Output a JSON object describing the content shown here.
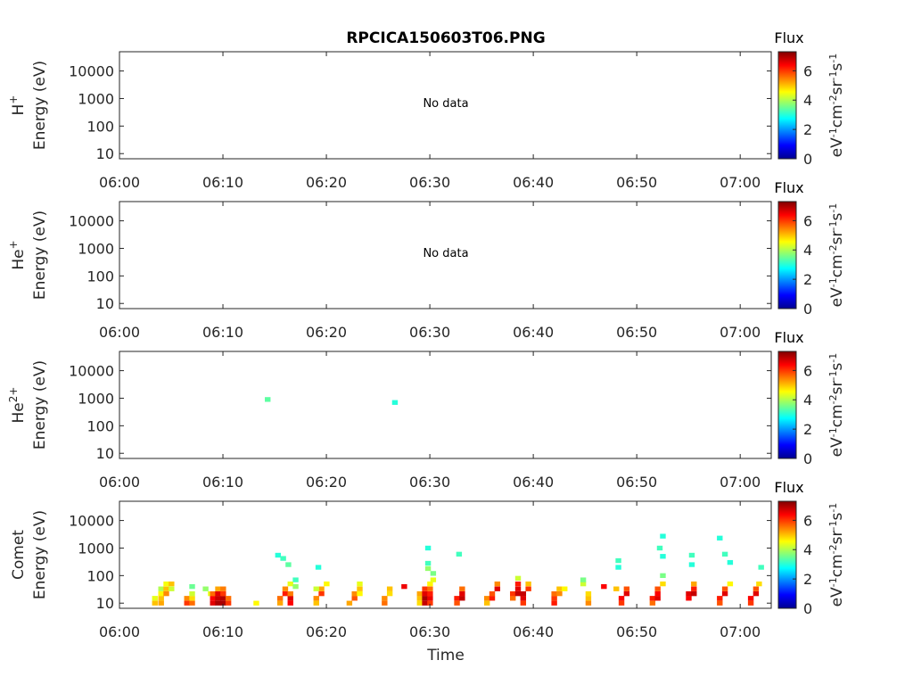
{
  "figure": {
    "title": "RPCICA150603T06.PNG",
    "xlabel": "Time"
  },
  "chart_data": [
    {
      "type": "heatmap",
      "ylabel_species": "H",
      "ylabel_sup": "+",
      "ylabel": "Energy (eV)",
      "x_ticks": [
        "06:00",
        "06:10",
        "06:20",
        "06:30",
        "06:40",
        "06:50",
        "07:00"
      ],
      "y_ticks": [
        "10",
        "100",
        "1000",
        "10000"
      ],
      "y_scale": "log",
      "annotation": "No data",
      "colorbar": {
        "label": "Flux",
        "units": "eV-1cm-2sr-1s-1",
        "ticks": [
          "0",
          "2",
          "4",
          "6"
        ],
        "range": [
          0,
          7.3
        ],
        "colormap": "jet"
      },
      "cells": []
    },
    {
      "type": "heatmap",
      "ylabel_species": "He",
      "ylabel_sup": "+",
      "ylabel": "Energy (eV)",
      "x_ticks": [
        "06:00",
        "06:10",
        "06:20",
        "06:30",
        "06:40",
        "06:50",
        "07:00"
      ],
      "y_ticks": [
        "10",
        "100",
        "1000",
        "10000"
      ],
      "y_scale": "log",
      "annotation": "No data",
      "colorbar": {
        "label": "Flux",
        "units": "eV-1cm-2sr-1s-1",
        "ticks": [
          "0",
          "2",
          "4",
          "6"
        ],
        "range": [
          0,
          7.3
        ],
        "colormap": "jet"
      },
      "cells": []
    },
    {
      "type": "heatmap",
      "ylabel_species": "He",
      "ylabel_sup": "2+",
      "ylabel": "Energy (eV)",
      "x_ticks": [
        "06:00",
        "06:10",
        "06:20",
        "06:30",
        "06:40",
        "06:50",
        "07:00"
      ],
      "y_ticks": [
        "10",
        "100",
        "1000",
        "10000"
      ],
      "y_scale": "log",
      "annotation": "",
      "colorbar": {
        "label": "Flux",
        "units": "eV-1cm-2sr-1s-1",
        "ticks": [
          "0",
          "2",
          "4",
          "6"
        ],
        "range": [
          0,
          7.3
        ],
        "colormap": "jet"
      },
      "cells": [
        {
          "t": 14.3,
          "e": 900,
          "v": 3.4
        },
        {
          "t": 26.6,
          "e": 700,
          "v": 3.0
        }
      ]
    },
    {
      "type": "heatmap",
      "ylabel_species": "Comet",
      "ylabel_sup": "",
      "ylabel": "Energy (eV)",
      "x_ticks": [
        "06:00",
        "06:10",
        "06:20",
        "06:30",
        "06:40",
        "06:50",
        "07:00"
      ],
      "y_ticks": [
        "10",
        "100",
        "1000",
        "10000"
      ],
      "y_scale": "log",
      "annotation": "",
      "colorbar": {
        "label": "Flux",
        "units": "eV-1cm-2sr-1s-1",
        "ticks": [
          "0",
          "2",
          "4",
          "6"
        ],
        "range": [
          0,
          7.3
        ],
        "colormap": "jet"
      },
      "cells": [
        {
          "t": 3.4,
          "e": 10,
          "v": 5.0
        },
        {
          "t": 3.4,
          "e": 15,
          "v": 4.4
        },
        {
          "t": 4.0,
          "e": 10,
          "v": 5.2
        },
        {
          "t": 4.0,
          "e": 15,
          "v": 5.0
        },
        {
          "t": 4.0,
          "e": 22,
          "v": 4.6
        },
        {
          "t": 4.0,
          "e": 33,
          "v": 4.0
        },
        {
          "t": 4.5,
          "e": 22,
          "v": 5.4
        },
        {
          "t": 4.5,
          "e": 33,
          "v": 5.0
        },
        {
          "t": 4.5,
          "e": 50,
          "v": 4.5
        },
        {
          "t": 5.0,
          "e": 33,
          "v": 4.2
        },
        {
          "t": 5.0,
          "e": 50,
          "v": 5.0
        },
        {
          "t": 6.5,
          "e": 10,
          "v": 6.0
        },
        {
          "t": 6.5,
          "e": 15,
          "v": 5.4
        },
        {
          "t": 7.0,
          "e": 10,
          "v": 5.6
        },
        {
          "t": 7.0,
          "e": 15,
          "v": 4.8
        },
        {
          "t": 7.0,
          "e": 22,
          "v": 4.2
        },
        {
          "t": 7.0,
          "e": 40,
          "v": 3.5
        },
        {
          "t": 8.3,
          "e": 33,
          "v": 3.8
        },
        {
          "t": 8.8,
          "e": 22,
          "v": 4.4
        },
        {
          "t": 9.0,
          "e": 10,
          "v": 6.6
        },
        {
          "t": 9.0,
          "e": 15,
          "v": 6.4
        },
        {
          "t": 9.0,
          "e": 22,
          "v": 5.6
        },
        {
          "t": 9.5,
          "e": 10,
          "v": 7.0
        },
        {
          "t": 9.5,
          "e": 15,
          "v": 6.8
        },
        {
          "t": 9.5,
          "e": 22,
          "v": 6.6
        },
        {
          "t": 10.0,
          "e": 10,
          "v": 7.0
        },
        {
          "t": 10.0,
          "e": 15,
          "v": 6.9
        },
        {
          "t": 10.0,
          "e": 22,
          "v": 6.0
        },
        {
          "t": 10.5,
          "e": 10,
          "v": 6.0
        },
        {
          "t": 10.5,
          "e": 15,
          "v": 5.6
        },
        {
          "t": 9.5,
          "e": 33,
          "v": 5.2
        },
        {
          "t": 10.0,
          "e": 33,
          "v": 5.5
        },
        {
          "t": 13.2,
          "e": 10,
          "v": 4.6
        },
        {
          "t": 15.5,
          "e": 15,
          "v": 5.6
        },
        {
          "t": 15.5,
          "e": 10,
          "v": 5.2
        },
        {
          "t": 16.0,
          "e": 22,
          "v": 6.2
        },
        {
          "t": 16.0,
          "e": 33,
          "v": 5.4
        },
        {
          "t": 16.5,
          "e": 10,
          "v": 6.4
        },
        {
          "t": 16.5,
          "e": 15,
          "v": 6.6
        },
        {
          "t": 16.5,
          "e": 22,
          "v": 5.5
        },
        {
          "t": 16.5,
          "e": 50,
          "v": 4.4
        },
        {
          "t": 17.0,
          "e": 40,
          "v": 3.8
        },
        {
          "t": 17.0,
          "e": 70,
          "v": 3.2
        },
        {
          "t": 15.3,
          "e": 550,
          "v": 3.0
        },
        {
          "t": 15.8,
          "e": 420,
          "v": 3.2
        },
        {
          "t": 16.3,
          "e": 250,
          "v": 3.4
        },
        {
          "t": 19.0,
          "e": 10,
          "v": 5.0
        },
        {
          "t": 19.0,
          "e": 15,
          "v": 5.4
        },
        {
          "t": 19.5,
          "e": 22,
          "v": 6.0
        },
        {
          "t": 19.5,
          "e": 33,
          "v": 5.2
        },
        {
          "t": 20.0,
          "e": 50,
          "v": 4.6
        },
        {
          "t": 19.0,
          "e": 33,
          "v": 4.2
        },
        {
          "t": 19.2,
          "e": 200,
          "v": 3.0
        },
        {
          "t": 22.2,
          "e": 10,
          "v": 5.2
        },
        {
          "t": 22.7,
          "e": 15,
          "v": 5.8
        },
        {
          "t": 22.7,
          "e": 22,
          "v": 5.4
        },
        {
          "t": 23.2,
          "e": 22,
          "v": 4.6
        },
        {
          "t": 23.2,
          "e": 33,
          "v": 5.0
        },
        {
          "t": 23.2,
          "e": 50,
          "v": 4.4
        },
        {
          "t": 25.6,
          "e": 10,
          "v": 5.6
        },
        {
          "t": 25.6,
          "e": 15,
          "v": 5.4
        },
        {
          "t": 26.1,
          "e": 22,
          "v": 4.8
        },
        {
          "t": 26.1,
          "e": 33,
          "v": 5.0
        },
        {
          "t": 27.5,
          "e": 40,
          "v": 6.5
        },
        {
          "t": 29.0,
          "e": 10,
          "v": 4.8
        },
        {
          "t": 29.0,
          "e": 15,
          "v": 5.0
        },
        {
          "t": 29.0,
          "e": 22,
          "v": 5.2
        },
        {
          "t": 29.5,
          "e": 10,
          "v": 6.8
        },
        {
          "t": 29.5,
          "e": 15,
          "v": 7.0
        },
        {
          "t": 29.5,
          "e": 22,
          "v": 6.6
        },
        {
          "t": 29.5,
          "e": 33,
          "v": 6.0
        },
        {
          "t": 30.0,
          "e": 10,
          "v": 6.0
        },
        {
          "t": 30.0,
          "e": 15,
          "v": 6.5
        },
        {
          "t": 30.0,
          "e": 22,
          "v": 6.2
        },
        {
          "t": 30.0,
          "e": 33,
          "v": 5.6
        },
        {
          "t": 30.0,
          "e": 50,
          "v": 4.6
        },
        {
          "t": 30.3,
          "e": 70,
          "v": 4.4
        },
        {
          "t": 30.3,
          "e": 120,
          "v": 3.6
        },
        {
          "t": 29.8,
          "e": 180,
          "v": 3.8
        },
        {
          "t": 29.8,
          "e": 1000,
          "v": 3.0
        },
        {
          "t": 29.8,
          "e": 280,
          "v": 3.2
        },
        {
          "t": 32.6,
          "e": 10,
          "v": 5.8
        },
        {
          "t": 32.6,
          "e": 15,
          "v": 6.2
        },
        {
          "t": 33.1,
          "e": 15,
          "v": 6.8
        },
        {
          "t": 33.1,
          "e": 22,
          "v": 6.6
        },
        {
          "t": 33.1,
          "e": 33,
          "v": 5.6
        },
        {
          "t": 32.8,
          "e": 600,
          "v": 3.2
        },
        {
          "t": 35.5,
          "e": 10,
          "v": 5.0
        },
        {
          "t": 35.5,
          "e": 15,
          "v": 5.4
        },
        {
          "t": 36.0,
          "e": 15,
          "v": 6.2
        },
        {
          "t": 36.0,
          "e": 22,
          "v": 5.8
        },
        {
          "t": 36.5,
          "e": 33,
          "v": 6.6
        },
        {
          "t": 36.5,
          "e": 50,
          "v": 5.4
        },
        {
          "t": 38.0,
          "e": 15,
          "v": 5.6
        },
        {
          "t": 38.0,
          "e": 22,
          "v": 6.0
        },
        {
          "t": 38.5,
          "e": 22,
          "v": 6.8
        },
        {
          "t": 38.5,
          "e": 33,
          "v": 6.6
        },
        {
          "t": 38.5,
          "e": 50,
          "v": 6.2
        },
        {
          "t": 38.5,
          "e": 80,
          "v": 4.2
        },
        {
          "t": 39.0,
          "e": 10,
          "v": 6.0
        },
        {
          "t": 39.0,
          "e": 15,
          "v": 6.6
        },
        {
          "t": 39.0,
          "e": 22,
          "v": 6.8
        },
        {
          "t": 39.5,
          "e": 33,
          "v": 6.0
        },
        {
          "t": 39.5,
          "e": 50,
          "v": 5.0
        },
        {
          "t": 42.0,
          "e": 10,
          "v": 6.2
        },
        {
          "t": 42.0,
          "e": 15,
          "v": 6.0
        },
        {
          "t": 42.0,
          "e": 22,
          "v": 5.6
        },
        {
          "t": 42.5,
          "e": 22,
          "v": 5.4
        },
        {
          "t": 42.5,
          "e": 33,
          "v": 5.0
        },
        {
          "t": 43.0,
          "e": 33,
          "v": 4.6
        },
        {
          "t": 44.8,
          "e": 50,
          "v": 4.2
        },
        {
          "t": 44.8,
          "e": 70,
          "v": 3.6
        },
        {
          "t": 45.3,
          "e": 10,
          "v": 5.4
        },
        {
          "t": 45.3,
          "e": 15,
          "v": 5.0
        },
        {
          "t": 45.3,
          "e": 22,
          "v": 4.8
        },
        {
          "t": 46.8,
          "e": 40,
          "v": 6.4
        },
        {
          "t": 48.5,
          "e": 10,
          "v": 6.0
        },
        {
          "t": 48.5,
          "e": 15,
          "v": 6.4
        },
        {
          "t": 49.0,
          "e": 22,
          "v": 6.6
        },
        {
          "t": 49.0,
          "e": 33,
          "v": 5.8
        },
        {
          "t": 48.0,
          "e": 33,
          "v": 5.0
        },
        {
          "t": 48.2,
          "e": 350,
          "v": 3.2
        },
        {
          "t": 48.2,
          "e": 200,
          "v": 3.0
        },
        {
          "t": 51.5,
          "e": 10,
          "v": 5.6
        },
        {
          "t": 51.5,
          "e": 15,
          "v": 6.2
        },
        {
          "t": 52.0,
          "e": 15,
          "v": 6.6
        },
        {
          "t": 52.0,
          "e": 22,
          "v": 6.4
        },
        {
          "t": 52.0,
          "e": 33,
          "v": 5.8
        },
        {
          "t": 52.5,
          "e": 50,
          "v": 4.8
        },
        {
          "t": 52.5,
          "e": 100,
          "v": 3.6
        },
        {
          "t": 52.5,
          "e": 2700,
          "v": 3.0
        },
        {
          "t": 52.2,
          "e": 1000,
          "v": 3.2
        },
        {
          "t": 52.5,
          "e": 500,
          "v": 3.0
        },
        {
          "t": 55.0,
          "e": 15,
          "v": 6.4
        },
        {
          "t": 55.0,
          "e": 22,
          "v": 6.6
        },
        {
          "t": 55.5,
          "e": 22,
          "v": 6.8
        },
        {
          "t": 55.5,
          "e": 33,
          "v": 6.2
        },
        {
          "t": 55.5,
          "e": 50,
          "v": 5.2
        },
        {
          "t": 55.3,
          "e": 550,
          "v": 3.2
        },
        {
          "t": 55.3,
          "e": 250,
          "v": 3.0
        },
        {
          "t": 58.0,
          "e": 10,
          "v": 5.8
        },
        {
          "t": 58.0,
          "e": 15,
          "v": 6.2
        },
        {
          "t": 58.5,
          "e": 22,
          "v": 6.6
        },
        {
          "t": 58.5,
          "e": 33,
          "v": 5.8
        },
        {
          "t": 59.0,
          "e": 50,
          "v": 4.6
        },
        {
          "t": 58.0,
          "e": 2300,
          "v": 3.0
        },
        {
          "t": 58.5,
          "e": 600,
          "v": 3.2
        },
        {
          "t": 59.0,
          "e": 300,
          "v": 3.0
        },
        {
          "t": 61.0,
          "e": 10,
          "v": 6.0
        },
        {
          "t": 61.0,
          "e": 15,
          "v": 6.4
        },
        {
          "t": 61.5,
          "e": 22,
          "v": 6.6
        },
        {
          "t": 61.5,
          "e": 33,
          "v": 5.8
        },
        {
          "t": 61.8,
          "e": 50,
          "v": 4.8
        },
        {
          "t": 62.0,
          "e": 200,
          "v": 3.2
        }
      ]
    }
  ]
}
